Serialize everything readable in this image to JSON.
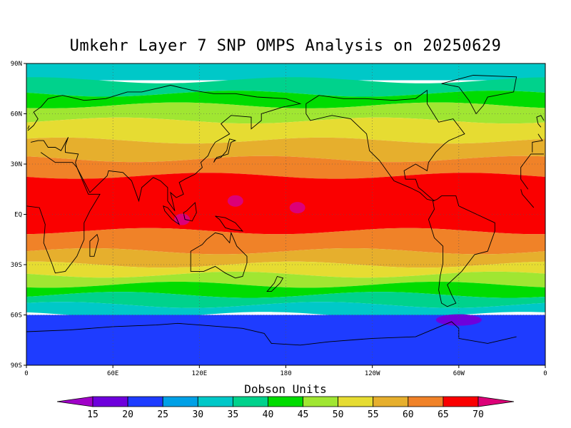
{
  "title": "Umkehr Layer 7 SNP OMPS Analysis on 20250629",
  "colorbar": {
    "title": "Dobson Units",
    "ticks": [
      "15",
      "20",
      "25",
      "30",
      "35",
      "40",
      "45",
      "50",
      "55",
      "60",
      "65",
      "70"
    ],
    "colors": [
      "#a000c8",
      "#6e00dc",
      "#1e3cff",
      "#00a0e6",
      "#00c8c8",
      "#00d28c",
      "#00dc00",
      "#a0e632",
      "#e6dc32",
      "#e6af2d",
      "#f08228",
      "#fa0000",
      "#dc0078"
    ]
  },
  "axes": {
    "lat_labels": [
      "90N",
      "60N",
      "30N",
      "EQ",
      "30S",
      "60S",
      "90S"
    ],
    "lon_labels": [
      "0",
      "60E",
      "120E",
      "180",
      "120W",
      "60W",
      "0"
    ]
  },
  "map_data": {
    "projection": "cylindrical equidistant",
    "lon_range": [
      0,
      360
    ],
    "lat_range": [
      -90,
      90
    ],
    "latitude_bands": [
      {
        "lat_from": 90,
        "lat_to": 80,
        "value_du": 32
      },
      {
        "lat_from": 80,
        "lat_to": 72,
        "value_du": 37
      },
      {
        "lat_from": 72,
        "lat_to": 65,
        "value_du": 42
      },
      {
        "lat_from": 65,
        "lat_to": 56,
        "value_du": 47
      },
      {
        "lat_from": 56,
        "lat_to": 44,
        "value_du": 52
      },
      {
        "lat_from": 44,
        "lat_to": 33,
        "value_du": 57
      },
      {
        "lat_from": 33,
        "lat_to": 23,
        "value_du": 62
      },
      {
        "lat_from": 23,
        "lat_to": -10,
        "value_du": 65
      },
      {
        "lat_from": -10,
        "lat_to": -22,
        "value_du": 62
      },
      {
        "lat_from": -22,
        "lat_to": -30,
        "value_du": 57
      },
      {
        "lat_from": -30,
        "lat_to": -36,
        "value_du": 52
      },
      {
        "lat_from": -36,
        "lat_to": -42,
        "value_du": 47
      },
      {
        "lat_from": -42,
        "lat_to": -48,
        "value_du": 42
      },
      {
        "lat_from": -48,
        "lat_to": -54,
        "value_du": 37
      },
      {
        "lat_from": -54,
        "lat_to": -60,
        "value_du": 32
      },
      {
        "lat_from": -60,
        "lat_to": -90,
        "value_du": 22
      }
    ],
    "maxima": [
      {
        "lon": 145,
        "lat": 8,
        "value_du": 70
      },
      {
        "lon": 188,
        "lat": 4,
        "value_du": 70
      },
      {
        "lon": 108,
        "lat": -3,
        "value_du": 70
      }
    ],
    "minima": [
      {
        "lon": 300,
        "lat": -63,
        "value_du": 17
      }
    ]
  }
}
